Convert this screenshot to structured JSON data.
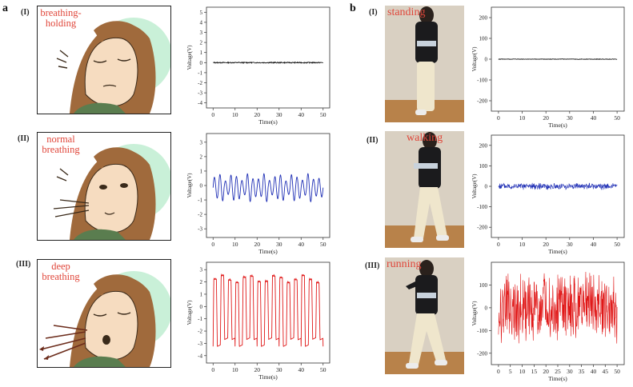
{
  "panels": {
    "a": {
      "letter": "a",
      "rows": [
        {
          "roman": "(I)",
          "caption_lines": [
            "breathing-",
            "holding"
          ]
        },
        {
          "roman": "(II)",
          "caption_lines": [
            "normal",
            "breathing"
          ]
        },
        {
          "roman": "(III)",
          "caption_lines": [
            "deep",
            "breathing"
          ]
        }
      ]
    },
    "b": {
      "letter": "b",
      "rows": [
        {
          "roman": "(I)",
          "caption": "standing"
        },
        {
          "roman": "(II)",
          "caption": "walking"
        },
        {
          "roman": "(III)",
          "caption": "running"
        }
      ]
    }
  },
  "colors": {
    "black_signal": "#1a1a1a",
    "blue_signal": "#1f2fb5",
    "red_signal": "#e01818",
    "caption_red": "#e0463a",
    "face_skin": "#f6dcc0",
    "hair": "#a06a3c",
    "shirt": "#5a7d4f",
    "aura": "#c9f0d8"
  },
  "chart_data": [
    {
      "type": "line",
      "series": [
        {
          "name": "",
          "color": "#1a1a1a",
          "pattern": "flat",
          "amplitude": 0.05
        }
      ],
      "x_range": [
        0,
        50
      ],
      "xlim": [
        -3,
        53
      ],
      "ylim": [
        -4.5,
        5.5
      ],
      "x_ticks": [
        "0",
        "10",
        "20",
        "30",
        "40",
        "50"
      ],
      "y_ticks": [
        "5",
        "4",
        "3",
        "2",
        "1",
        "0",
        "-1",
        "-2",
        "-3",
        "-4"
      ],
      "y_tick_values": [
        5,
        4,
        3,
        2,
        1,
        0,
        -1,
        -2,
        -3,
        -4
      ],
      "xlabel": "Time(s)",
      "ylabel": "Voltage(V)"
    },
    {
      "type": "line",
      "series": [
        {
          "name": "",
          "color": "#1f2fb5",
          "pattern": "breath",
          "amplitude": 0.85,
          "cycles": 20
        }
      ],
      "x_range": [
        0,
        50
      ],
      "xlim": [
        -3,
        53
      ],
      "ylim": [
        -3.6,
        3.6
      ],
      "x_ticks": [
        "0",
        "10",
        "20",
        "30",
        "40",
        "50"
      ],
      "y_ticks": [
        "3",
        "2",
        "1",
        "0",
        "-1",
        "-2",
        "-3"
      ],
      "y_tick_values": [
        3,
        2,
        1,
        0,
        -1,
        -2,
        -3
      ],
      "xlabel": "Time(s)",
      "ylabel": "Voltage(V)"
    },
    {
      "type": "line",
      "series": [
        {
          "name": "",
          "color": "#e01818",
          "pattern": "square_breath",
          "amplitude": 2.5,
          "cycles": 15
        }
      ],
      "x_range": [
        0,
        50
      ],
      "xlim": [
        -3,
        53
      ],
      "ylim": [
        -4.6,
        3.6
      ],
      "x_ticks": [
        "0",
        "10",
        "20",
        "30",
        "40",
        "50"
      ],
      "y_ticks": [
        "3",
        "2",
        "1",
        "0",
        "-1",
        "-2",
        "-3",
        "-4"
      ],
      "y_tick_values": [
        3,
        2,
        1,
        0,
        -1,
        -2,
        -3,
        -4
      ],
      "xlabel": "Time(s)",
      "ylabel": "Voltage(V)"
    },
    {
      "type": "line",
      "series": [
        {
          "name": "",
          "color": "#1a1a1a",
          "pattern": "flat",
          "amplitude": 1.2
        }
      ],
      "x_range": [
        0,
        50
      ],
      "xlim": [
        -3,
        53
      ],
      "ylim": [
        -250,
        250
      ],
      "x_ticks": [
        "0",
        "10",
        "20",
        "30",
        "40",
        "50"
      ],
      "y_ticks": [
        "200",
        "100",
        "0",
        "-100",
        "-200"
      ],
      "y_tick_values": [
        200,
        100,
        0,
        -100,
        -200
      ],
      "xlabel": "Time(s)",
      "ylabel": "Voltage(V)"
    },
    {
      "type": "line",
      "series": [
        {
          "name": "",
          "color": "#1f2fb5",
          "pattern": "noise",
          "amplitude": 18,
          "samples": 400
        }
      ],
      "x_range": [
        0,
        50
      ],
      "xlim": [
        -3,
        53
      ],
      "ylim": [
        -250,
        250
      ],
      "x_ticks": [
        "0",
        "10",
        "20",
        "30",
        "40",
        "50"
      ],
      "y_ticks": [
        "200",
        "100",
        "0",
        "-100",
        "-200"
      ],
      "y_tick_values": [
        200,
        100,
        0,
        -100,
        -200
      ],
      "xlabel": "Time(s)",
      "ylabel": "Voltage(V)"
    },
    {
      "type": "line",
      "series": [
        {
          "name": "",
          "color": "#e01818",
          "pattern": "noise",
          "amplitude": 170,
          "samples": 420
        }
      ],
      "x_range": [
        0,
        50
      ],
      "xlim": [
        -3,
        53
      ],
      "ylim": [
        -250,
        200
      ],
      "x_ticks": [
        "0",
        "5",
        "10",
        "15",
        "20",
        "25",
        "30",
        "35",
        "40",
        "45",
        "50"
      ],
      "y_ticks": [
        "100",
        "0",
        "-100",
        "-200"
      ],
      "y_tick_values": [
        100,
        0,
        -100,
        -200
      ],
      "xlabel": "Time(s)",
      "ylabel": "Voltage(V)"
    }
  ]
}
